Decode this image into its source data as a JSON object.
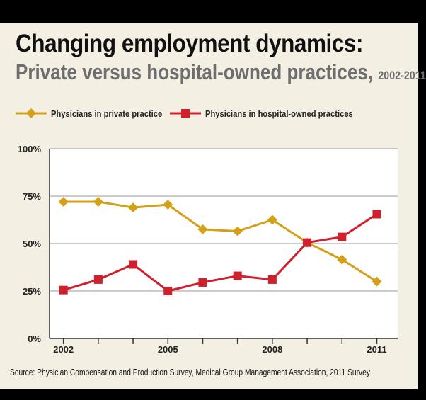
{
  "header": {
    "title": "Changing employment dynamics:",
    "subtitle": "Private versus hospital-owned practices,",
    "subtitle_range": "2002-2011"
  },
  "footer": {
    "source": "Source: Physician Compensation and Production Survey, Medical Group Management Association, 2011 Survey"
  },
  "chart_data": {
    "type": "line",
    "x": [
      2002,
      2003,
      2004,
      2005,
      2006,
      2007,
      2008,
      2009,
      2010,
      2011
    ],
    "series": [
      {
        "name": "Physicians in private practice",
        "color": "#d4a017",
        "marker": "diamond",
        "values": [
          72,
          72,
          69,
          70.5,
          57.5,
          56.5,
          62.5,
          50.5,
          41.5,
          30
        ]
      },
      {
        "name": "Physicians in hospital-owned practices",
        "color": "#d0202e",
        "marker": "square",
        "values": [
          25.5,
          31,
          39,
          25,
          29.5,
          33,
          31,
          50.5,
          53.5,
          65.5
        ]
      }
    ],
    "x_ticks": [
      "2002",
      "2005",
      "2008",
      "2011"
    ],
    "y_ticks": [
      "0%",
      "25%",
      "50%",
      "75%",
      "100%"
    ],
    "y_tick_values": [
      0,
      25,
      50,
      75,
      100
    ],
    "ylim": [
      0,
      100
    ],
    "xlim": [
      2001.6,
      2011.6
    ],
    "grid": "horizontal",
    "legend": "top-left"
  }
}
